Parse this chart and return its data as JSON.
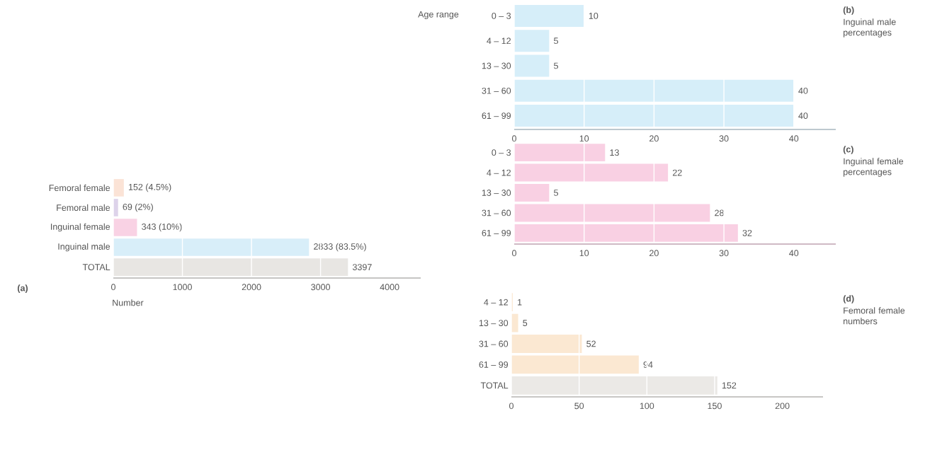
{
  "chart_data": [
    {
      "type": "bar",
      "orientation": "horizontal",
      "title": "(a)",
      "xlabel": "Number",
      "categories": [
        "Femoral female",
        "Femoral male",
        "Inguinal female",
        "Inguinal male",
        "TOTAL"
      ],
      "values": [
        152,
        69,
        343,
        2833,
        3397
      ],
      "value_labels": [
        "152 (4.5%)",
        "69 (2%)",
        "343 (10%)",
        "2833 (83.5%)",
        "3397"
      ],
      "colors": [
        "#fbe3d6",
        "#ddd3ea",
        "#f9d2e4",
        "#d8eef9",
        "#e8e6e3"
      ],
      "xlim": [
        0,
        4450
      ],
      "xticks": [
        0,
        1000,
        2000,
        3000,
        4000
      ],
      "grid": "x"
    },
    {
      "type": "bar",
      "orientation": "horizontal",
      "annotations": [
        "(b)",
        "Inguinal male percentages"
      ],
      "ylabel": "Age range",
      "categories": [
        "0 – 3",
        "4 – 12",
        "13 – 30",
        "31 – 60",
        "61 – 99"
      ],
      "values": [
        10,
        5,
        5,
        40,
        40
      ],
      "color": "#d6eef9",
      "data_labels": true,
      "xlim": [
        0,
        46
      ],
      "xticks": [
        0,
        10,
        20,
        30,
        40
      ],
      "grid": "x"
    },
    {
      "type": "bar",
      "orientation": "horizontal",
      "annotations": [
        "(c)",
        "Inguinal female percentages"
      ],
      "categories": [
        "0 – 3",
        "4 – 12",
        "13 – 30",
        "31 – 60",
        "61 – 99"
      ],
      "values": [
        13,
        22,
        5,
        28,
        32
      ],
      "color": "#f9d0e3",
      "data_labels": true,
      "xlim": [
        0,
        46
      ],
      "xticks": [
        0,
        10,
        20,
        30,
        40
      ],
      "grid": "x"
    },
    {
      "type": "bar",
      "orientation": "horizontal",
      "annotations": [
        "(d)",
        "Femoral female numbers"
      ],
      "categories": [
        "4 – 12",
        "13 – 30",
        "31 – 60",
        "61 – 99",
        "TOTAL"
      ],
      "values": [
        1,
        5,
        52,
        94,
        152
      ],
      "colors": [
        "#fbe8d2",
        "#fbe8d2",
        "#fbe8d2",
        "#fbe8d2",
        "#ebe9e6"
      ],
      "data_labels": true,
      "xlim": [
        0,
        230
      ],
      "xticks": [
        0,
        50,
        100,
        150,
        200
      ],
      "grid": "x"
    }
  ]
}
